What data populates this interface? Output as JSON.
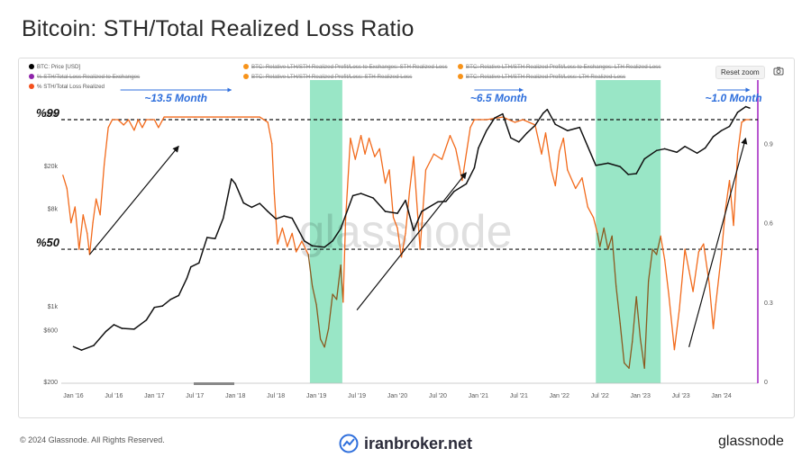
{
  "title": "Bitcoin: STH/Total Realized Loss Ratio",
  "legend": [
    {
      "label": "BTC: Price [USD]",
      "color": "#000000",
      "struck": false
    },
    {
      "label": "BTC: Relative LTH/STH Realized Profit/Loss to Exchanges: STH Realized Loss",
      "color": "#f7931a",
      "struck": true
    },
    {
      "label": "BTC: Relative LTH/STH Realized Profit/Loss to Exchanges: LTH Realized Loss",
      "color": "#f7931a",
      "struck": true
    },
    {
      "label": "% STH/Total Loss Realized to Exchanges",
      "color": "#8e24aa",
      "struck": true
    },
    {
      "label": "BTC: Relative LTH/STH Realized Profit/Loss: STH Realized Loss",
      "color": "#f7931a",
      "struck": true
    },
    {
      "label": "BTC: Relative LTH/STH Realized Profit/Loss: LTH Realized Loss",
      "color": "#f7931a",
      "struck": true
    },
    {
      "label": "% STH/Total Loss Realized",
      "color": "#f4511e",
      "struck": false
    }
  ],
  "reset_zoom": "Reset zoom",
  "camera_icon": "camera-icon",
  "footer": {
    "copyright": "© 2024 Glassnode. All Rights Reserved.",
    "brand": "iranbroker.net",
    "logo": "glassnode"
  },
  "colors": {
    "price": "#111111",
    "ratio": "#f26a1b",
    "ratio_dark": "#8a5a20",
    "highlight": "#7fe0b8",
    "arrow_blue": "#2f6fdc",
    "purple": "#a020c0"
  },
  "chart_data": {
    "type": "line",
    "watermark": "glassnode",
    "x_ticks": [
      "Jan '16",
      "Jul '16",
      "Jan '17",
      "Jul '17",
      "Jan '18",
      "Jul '18",
      "Jan '19",
      "Jul '19",
      "Jan '20",
      "Jul '20",
      "Jan '21",
      "Jul '21",
      "Jan '22",
      "Jul '22",
      "Jan '23",
      "Jul '23",
      "Jan '24"
    ],
    "x_range": [
      2015.85,
      2024.45
    ],
    "y_left": {
      "scale": "log",
      "range": [
        200,
        100000
      ],
      "ticks": [
        "$200",
        "$600",
        "$1k",
        "$8k",
        "$20k",
        "$60k"
      ],
      "tick_values": [
        200,
        600,
        1000,
        8000,
        20000,
        60000
      ]
    },
    "y_right": {
      "range": [
        0,
        1.15
      ],
      "ticks": [
        "0",
        "0.3",
        "0.6",
        "0.9"
      ],
      "tick_values": [
        0,
        0.3,
        0.6,
        0.9
      ]
    },
    "reference_lines": [
      {
        "label": "%99",
        "value": 0.99
      },
      {
        "label": "%50",
        "value": 0.5
      }
    ],
    "annotations": [
      {
        "text": "~13.5 Month",
        "from": 2016.58,
        "to": 2017.95
      },
      {
        "text": "~6.5 Month",
        "from": 2020.95,
        "to": 2021.55
      },
      {
        "text": "~1.0 Month",
        "from": 2023.95,
        "to": 2024.35
      }
    ],
    "highlight_ranges": [
      [
        2018.92,
        2019.32
      ],
      [
        2022.45,
        2023.25
      ]
    ],
    "series": [
      {
        "name": "BTC: Price [USD]",
        "axis": "left",
        "points": [
          [
            2016.0,
            420
          ],
          [
            2016.1,
            390
          ],
          [
            2016.25,
            430
          ],
          [
            2016.4,
            580
          ],
          [
            2016.5,
            670
          ],
          [
            2016.6,
            620
          ],
          [
            2016.75,
            610
          ],
          [
            2016.9,
            740
          ],
          [
            2017.0,
            970
          ],
          [
            2017.1,
            1000
          ],
          [
            2017.2,
            1150
          ],
          [
            2017.3,
            1250
          ],
          [
            2017.4,
            1800
          ],
          [
            2017.45,
            2300
          ],
          [
            2017.55,
            2500
          ],
          [
            2017.65,
            4300
          ],
          [
            2017.75,
            4200
          ],
          [
            2017.85,
            6500
          ],
          [
            2017.95,
            15000
          ],
          [
            2018.0,
            13500
          ],
          [
            2018.1,
            9000
          ],
          [
            2018.2,
            8200
          ],
          [
            2018.3,
            8900
          ],
          [
            2018.4,
            7500
          ],
          [
            2018.5,
            6400
          ],
          [
            2018.6,
            6800
          ],
          [
            2018.7,
            6500
          ],
          [
            2018.85,
            4000
          ],
          [
            2018.95,
            3600
          ],
          [
            2019.1,
            3500
          ],
          [
            2019.2,
            4000
          ],
          [
            2019.3,
            5200
          ],
          [
            2019.45,
            10500
          ],
          [
            2019.55,
            11000
          ],
          [
            2019.7,
            10000
          ],
          [
            2019.85,
            7500
          ],
          [
            2020.0,
            7200
          ],
          [
            2020.1,
            9500
          ],
          [
            2020.2,
            5000
          ],
          [
            2020.3,
            7500
          ],
          [
            2020.5,
            9200
          ],
          [
            2020.6,
            9300
          ],
          [
            2020.7,
            11500
          ],
          [
            2020.85,
            13500
          ],
          [
            2020.95,
            19000
          ],
          [
            2021.0,
            29000
          ],
          [
            2021.1,
            42000
          ],
          [
            2021.2,
            55000
          ],
          [
            2021.3,
            60000
          ],
          [
            2021.4,
            36000
          ],
          [
            2021.5,
            33000
          ],
          [
            2021.6,
            40000
          ],
          [
            2021.7,
            47000
          ],
          [
            2021.8,
            61000
          ],
          [
            2021.85,
            66000
          ],
          [
            2021.95,
            48000
          ],
          [
            2022.1,
            42000
          ],
          [
            2022.25,
            45000
          ],
          [
            2022.35,
            30000
          ],
          [
            2022.45,
            20000
          ],
          [
            2022.6,
            21000
          ],
          [
            2022.75,
            19500
          ],
          [
            2022.85,
            16500
          ],
          [
            2022.95,
            16800
          ],
          [
            2023.05,
            23000
          ],
          [
            2023.2,
            27500
          ],
          [
            2023.3,
            28500
          ],
          [
            2023.45,
            26500
          ],
          [
            2023.55,
            30000
          ],
          [
            2023.7,
            26000
          ],
          [
            2023.8,
            29000
          ],
          [
            2023.9,
            37000
          ],
          [
            2024.0,
            42000
          ],
          [
            2024.1,
            46000
          ],
          [
            2024.2,
            62000
          ],
          [
            2024.3,
            70000
          ],
          [
            2024.35,
            68000
          ]
        ]
      },
      {
        "name": "% STH/Total Loss Realized",
        "axis": "right",
        "points": [
          [
            2015.87,
            0.78
          ],
          [
            2015.92,
            0.73
          ],
          [
            2015.97,
            0.6
          ],
          [
            2016.02,
            0.66
          ],
          [
            2016.07,
            0.5
          ],
          [
            2016.12,
            0.63
          ],
          [
            2016.17,
            0.56
          ],
          [
            2016.2,
            0.48
          ],
          [
            2016.24,
            0.6
          ],
          [
            2016.28,
            0.69
          ],
          [
            2016.33,
            0.63
          ],
          [
            2016.38,
            0.82
          ],
          [
            2016.43,
            0.96
          ],
          [
            2016.48,
            0.99
          ],
          [
            2016.55,
            0.99
          ],
          [
            2016.62,
            0.97
          ],
          [
            2016.68,
            0.99
          ],
          [
            2016.75,
            0.95
          ],
          [
            2016.8,
            0.99
          ],
          [
            2016.85,
            0.96
          ],
          [
            2016.9,
            0.99
          ],
          [
            2017.0,
            0.99
          ],
          [
            2017.05,
            0.96
          ],
          [
            2017.12,
            1.0
          ],
          [
            2017.5,
            1.0
          ],
          [
            2017.9,
            1.0
          ],
          [
            2018.3,
            1.0
          ],
          [
            2018.4,
            0.98
          ],
          [
            2018.45,
            0.9
          ],
          [
            2018.48,
            0.71
          ],
          [
            2018.52,
            0.52
          ],
          [
            2018.58,
            0.58
          ],
          [
            2018.64,
            0.51
          ],
          [
            2018.7,
            0.56
          ],
          [
            2018.75,
            0.49
          ],
          [
            2018.82,
            0.53
          ],
          [
            2018.9,
            0.48
          ],
          [
            2018.95,
            0.36
          ],
          [
            2019.0,
            0.29
          ],
          [
            2019.05,
            0.16
          ],
          [
            2019.1,
            0.13
          ],
          [
            2019.15,
            0.2
          ],
          [
            2019.2,
            0.33
          ],
          [
            2019.25,
            0.31
          ],
          [
            2019.3,
            0.44
          ],
          [
            2019.33,
            0.3
          ],
          [
            2019.36,
            0.61
          ],
          [
            2019.42,
            0.92
          ],
          [
            2019.48,
            0.84
          ],
          [
            2019.55,
            0.93
          ],
          [
            2019.6,
            0.86
          ],
          [
            2019.65,
            0.92
          ],
          [
            2019.72,
            0.85
          ],
          [
            2019.78,
            0.88
          ],
          [
            2019.85,
            0.75
          ],
          [
            2019.9,
            0.8
          ],
          [
            2019.95,
            0.62
          ],
          [
            2020.0,
            0.58
          ],
          [
            2020.05,
            0.47
          ],
          [
            2020.1,
            0.56
          ],
          [
            2020.15,
            0.72
          ],
          [
            2020.2,
            0.85
          ],
          [
            2020.28,
            0.5
          ],
          [
            2020.35,
            0.8
          ],
          [
            2020.45,
            0.86
          ],
          [
            2020.55,
            0.84
          ],
          [
            2020.65,
            0.93
          ],
          [
            2020.72,
            0.88
          ],
          [
            2020.8,
            0.76
          ],
          [
            2020.9,
            0.96
          ],
          [
            2020.95,
            0.99
          ],
          [
            2021.1,
            0.99
          ],
          [
            2021.3,
            1.0
          ],
          [
            2021.45,
            0.98
          ],
          [
            2021.55,
            0.99
          ],
          [
            2021.7,
            0.97
          ],
          [
            2021.78,
            0.86
          ],
          [
            2021.83,
            0.94
          ],
          [
            2021.9,
            0.8
          ],
          [
            2021.95,
            0.74
          ],
          [
            2022.0,
            0.87
          ],
          [
            2022.05,
            0.92
          ],
          [
            2022.1,
            0.8
          ],
          [
            2022.2,
            0.73
          ],
          [
            2022.28,
            0.77
          ],
          [
            2022.35,
            0.66
          ],
          [
            2022.42,
            0.62
          ],
          [
            2022.47,
            0.56
          ],
          [
            2022.5,
            0.51
          ],
          [
            2022.55,
            0.58
          ],
          [
            2022.6,
            0.5
          ],
          [
            2022.65,
            0.55
          ],
          [
            2022.7,
            0.36
          ],
          [
            2022.75,
            0.22
          ],
          [
            2022.8,
            0.07
          ],
          [
            2022.86,
            0.05
          ],
          [
            2022.9,
            0.15
          ],
          [
            2022.95,
            0.32
          ],
          [
            2023.0,
            0.16
          ],
          [
            2023.05,
            0.05
          ],
          [
            2023.1,
            0.38
          ],
          [
            2023.15,
            0.5
          ],
          [
            2023.2,
            0.48
          ],
          [
            2023.25,
            0.55
          ],
          [
            2023.3,
            0.46
          ],
          [
            2023.35,
            0.33
          ],
          [
            2023.42,
            0.12
          ],
          [
            2023.48,
            0.27
          ],
          [
            2023.55,
            0.5
          ],
          [
            2023.6,
            0.42
          ],
          [
            2023.65,
            0.34
          ],
          [
            2023.72,
            0.49
          ],
          [
            2023.78,
            0.52
          ],
          [
            2023.85,
            0.37
          ],
          [
            2023.9,
            0.2
          ],
          [
            2023.93,
            0.29
          ],
          [
            2024.0,
            0.48
          ],
          [
            2024.05,
            0.65
          ],
          [
            2024.1,
            0.76
          ],
          [
            2024.15,
            0.59
          ],
          [
            2024.2,
            0.86
          ],
          [
            2024.25,
            0.98
          ],
          [
            2024.3,
            0.99
          ],
          [
            2024.35,
            0.99
          ]
        ]
      }
    ]
  }
}
